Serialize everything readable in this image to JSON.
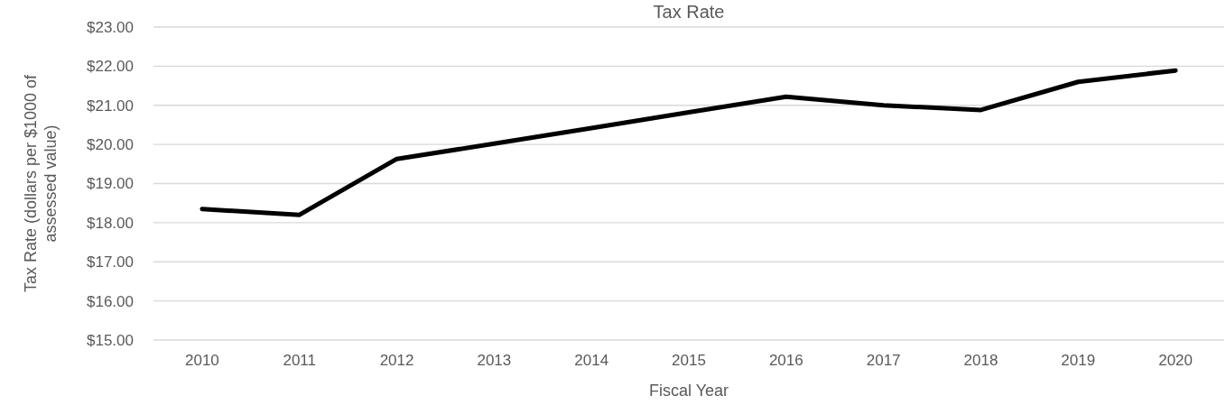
{
  "chart_data": {
    "type": "line",
    "title": "Tax Rate",
    "xlabel": "Fiscal Year",
    "ylabel": "Tax Rate (dollars per $1000 of assessed value)",
    "categories": [
      "2010",
      "2011",
      "2012",
      "2013",
      "2014",
      "2015",
      "2016",
      "2017",
      "2018",
      "2019",
      "2020"
    ],
    "series": [
      {
        "color": "#000000",
        "values": [
          18.35,
          18.2,
          19.63,
          20.02,
          20.42,
          20.82,
          21.22,
          21.0,
          20.88,
          21.6,
          21.89
        ]
      }
    ],
    "ylim": [
      15,
      23
    ],
    "yticks": [
      {
        "value": 15,
        "label": "$15.00"
      },
      {
        "value": 16,
        "label": "$16.00"
      },
      {
        "value": 17,
        "label": "$17.00"
      },
      {
        "value": 18,
        "label": "$18.00"
      },
      {
        "value": 19,
        "label": "$19.00"
      },
      {
        "value": 20,
        "label": "$20.00"
      },
      {
        "value": 21,
        "label": "$21.00"
      },
      {
        "value": 22,
        "label": "$22.00"
      },
      {
        "value": 23,
        "label": "$23.00"
      }
    ],
    "grid": "y",
    "marker": "none",
    "line_style": "solid"
  }
}
